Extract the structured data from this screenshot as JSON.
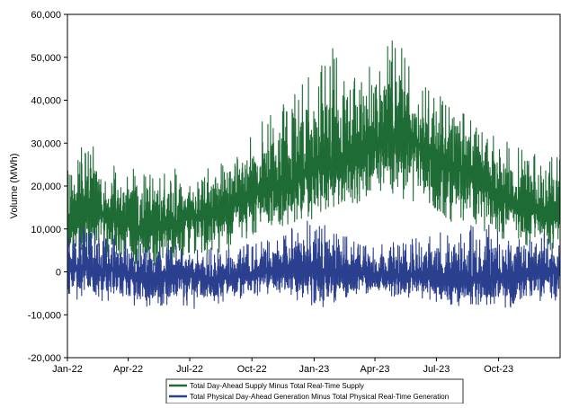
{
  "chart_data": {
    "type": "line",
    "title": "",
    "xlabel": "",
    "ylabel": "Volume (MWh)",
    "ylim": [
      -20000,
      60000
    ],
    "xlim": [
      "2022-01-01",
      "2023-12-31"
    ],
    "y_ticks": [
      -20000,
      -10000,
      0,
      10000,
      20000,
      30000,
      40000,
      50000,
      60000
    ],
    "y_tick_labels": [
      "-20,000",
      "-10,000",
      "0",
      "10,000",
      "20,000",
      "30,000",
      "40,000",
      "50,000",
      "60,000"
    ],
    "x_ticks": [
      "2022-01-01",
      "2022-04-01",
      "2022-07-01",
      "2022-10-01",
      "2023-01-01",
      "2023-04-01",
      "2023-07-01",
      "2023-10-01"
    ],
    "x_tick_labels": [
      "Jan-22",
      "Apr-22",
      "Jul-22",
      "Oct-22",
      "Jan-23",
      "Apr-23",
      "Jul-23",
      "Oct-23"
    ],
    "grid": false,
    "legend_position": "bottom",
    "x": [
      "2022-01-01",
      "2022-02-01",
      "2022-03-01",
      "2022-04-01",
      "2022-05-01",
      "2022-06-01",
      "2022-07-01",
      "2022-08-01",
      "2022-09-01",
      "2022-10-01",
      "2022-11-01",
      "2022-12-01",
      "2023-01-01",
      "2023-02-01",
      "2023-03-01",
      "2023-04-01",
      "2023-05-01",
      "2023-06-01",
      "2023-07-01",
      "2023-08-01",
      "2023-09-01",
      "2023-10-01",
      "2023-11-01",
      "2023-12-01"
    ],
    "series": [
      {
        "name": "Total Day-Ahead Supply Minus Total Real-Time Supply",
        "color": "#1e6b35",
        "values": [
          12000,
          14000,
          13000,
          11000,
          10000,
          11000,
          13000,
          13000,
          15000,
          18000,
          20000,
          21000,
          24000,
          26000,
          27000,
          30000,
          32000,
          30000,
          26000,
          24000,
          22000,
          18000,
          15000,
          14000
        ],
        "band_low": [
          3000,
          4000,
          3000,
          2000,
          1000,
          2000,
          4000,
          4000,
          5000,
          8000,
          10000,
          11000,
          12000,
          14000,
          15000,
          18000,
          17000,
          16000,
          13000,
          11000,
          10000,
          8000,
          6000,
          5000
        ],
        "band_high": [
          29000,
          30000,
          27000,
          25000,
          23000,
          24000,
          24000,
          25000,
          28000,
          33000,
          37000,
          41000,
          47000,
          53000,
          48000,
          52000,
          55000,
          46000,
          42000,
          39000,
          35000,
          31000,
          30000,
          28000
        ]
      },
      {
        "name": "Total Physical Day-Ahead Generation Minus Total Physical Real-Time Generation",
        "color": "#2b3f8f",
        "values": [
          1500,
          1000,
          500,
          0,
          -1000,
          -500,
          -1000,
          -1500,
          -1000,
          -500,
          0,
          500,
          1000,
          0,
          0,
          -500,
          -1000,
          -500,
          -1500,
          -2000,
          -1500,
          -1000,
          -500,
          0
        ],
        "band_low": [
          -6000,
          -7000,
          -7000,
          -8000,
          -9000,
          -8000,
          -9000,
          -8000,
          -7000,
          -6000,
          -5000,
          -6000,
          -9000,
          -7000,
          -6000,
          -5000,
          -6000,
          -6000,
          -7000,
          -8000,
          -8000,
          -8000,
          -9000,
          -7000
        ],
        "band_high": [
          9000,
          11000,
          9000,
          8000,
          6000,
          7000,
          5000,
          6000,
          6000,
          7000,
          8000,
          11000,
          13000,
          11000,
          7000,
          6000,
          7000,
          8000,
          9000,
          10000,
          12000,
          10000,
          10000,
          9000
        ]
      }
    ]
  }
}
